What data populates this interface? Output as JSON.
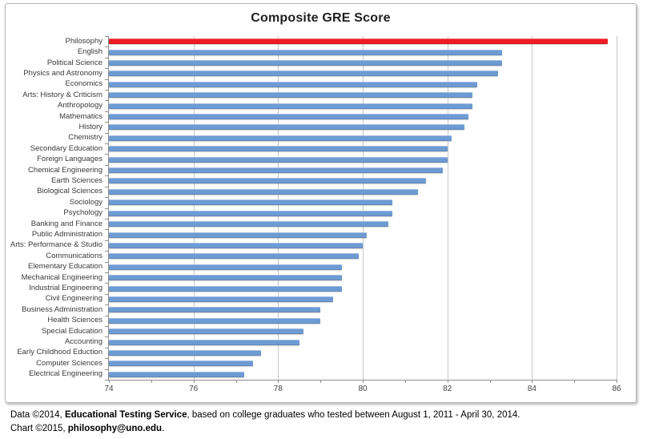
{
  "chart_data": {
    "type": "bar",
    "orientation": "horizontal",
    "title": "Composite GRE Score",
    "categories": [
      "Philosophy",
      "English",
      "Political Science",
      "Physics and Astronomy",
      "Economics",
      "Arts: History & Criticism",
      "Anthropology",
      "Mathematics",
      "History",
      "Chemistry",
      "Secondary Education",
      "Foreign Languages",
      "Chemical Engineering",
      "Earth Sciences",
      "Biological Sciences",
      "Sociology",
      "Psychology",
      "Banking and Finance",
      "Public Administration",
      "Arts: Performance & Studio",
      "Communications",
      "Elementary Education",
      "Mechanical Engineering",
      "Industrial Engineering",
      "Civil Engineering",
      "Business Administration",
      "Health Sciences",
      "Special Education",
      "Accounting",
      "Early Childhood Eduction",
      "Computer Sciences",
      "Electrical Engineering"
    ],
    "values": [
      85.8,
      83.3,
      83.3,
      83.2,
      82.7,
      82.6,
      82.6,
      82.5,
      82.4,
      82.1,
      82.0,
      82.0,
      81.9,
      81.5,
      81.3,
      80.7,
      80.7,
      80.6,
      80.1,
      80.0,
      79.9,
      79.5,
      79.5,
      79.5,
      79.3,
      79.0,
      79.0,
      78.6,
      78.5,
      77.6,
      77.4,
      77.2
    ],
    "highlight": {
      "index": 0,
      "color": "#EE1D23"
    },
    "bar_color": "#6D9BD3",
    "xlabel": "",
    "ylabel": "",
    "xlim": [
      74,
      86
    ],
    "x_ticks": [
      74,
      76,
      78,
      80,
      82,
      84,
      86
    ],
    "minor_tick_step": 1,
    "legend": "none",
    "grid": "vertical-major"
  },
  "footer": {
    "line1_prefix": "Data ©2014, ",
    "line1_bold": "Educational Testing Service",
    "line1_suffix": ", based on college graduates who tested between August 1, 2011 - April 30, 2014.",
    "line2_prefix": "Chart ©2015, ",
    "line2_bold": "philosophy@uno.edu",
    "line2_suffix": "."
  },
  "colors": {
    "gridline": "#c9c9c9",
    "axis": "#8f8f8f",
    "frame_border": "#b5b5b5"
  }
}
